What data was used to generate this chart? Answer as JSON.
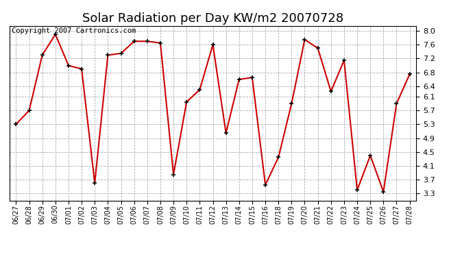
{
  "title": "Solar Radiation per Day KW/m2 20070728",
  "copyright": "Copyright 2007 Cartronics.com",
  "labels": [
    "06/27",
    "06/28",
    "06/29",
    "06/30",
    "07/01",
    "07/02",
    "07/03",
    "07/04",
    "07/05",
    "07/06",
    "07/07",
    "07/08",
    "07/09",
    "07/10",
    "07/11",
    "07/12",
    "07/13",
    "07/14",
    "07/15",
    "07/16",
    "07/18",
    "07/19",
    "07/20",
    "07/21",
    "07/22",
    "07/23",
    "07/24",
    "07/25",
    "07/26",
    "07/27",
    "07/28"
  ],
  "values": [
    5.3,
    5.7,
    7.3,
    7.9,
    7.0,
    6.9,
    3.6,
    7.3,
    7.35,
    7.7,
    7.7,
    7.65,
    3.85,
    5.95,
    6.3,
    7.6,
    5.05,
    6.6,
    6.65,
    3.55,
    4.35,
    5.9,
    7.75,
    7.5,
    6.25,
    7.15,
    3.4,
    4.4,
    3.35,
    5.9,
    6.75
  ],
  "line_color": "#cc0000",
  "bg_color": "#ffffff",
  "grid_color": "#aaaaaa",
  "yticks": [
    3.3,
    3.7,
    4.1,
    4.5,
    4.9,
    5.3,
    5.7,
    6.1,
    6.4,
    6.8,
    7.2,
    7.6,
    8.0
  ],
  "ymin": 3.1,
  "ymax": 8.15,
  "title_fontsize": 13,
  "copyright_fontsize": 7.5,
  "tick_fontsize": 8,
  "xlabel_fontsize": 7
}
